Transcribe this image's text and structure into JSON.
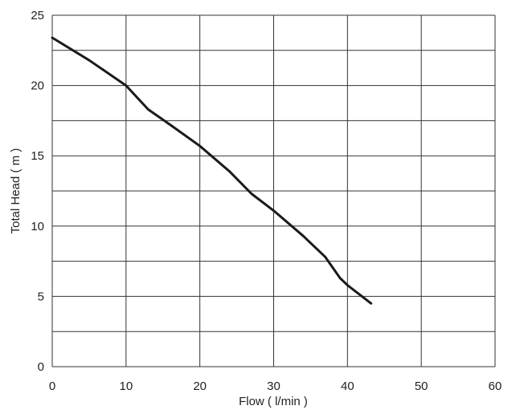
{
  "chart_data": {
    "type": "line",
    "x_label": "Flow ( l/min )",
    "y_label": "Total Head ( m )",
    "xlim": [
      0,
      60
    ],
    "xticks": [
      0,
      10,
      20,
      30,
      40,
      50,
      60
    ],
    "ylim": [
      0,
      25
    ],
    "yticks": [
      0,
      5,
      10,
      15,
      20,
      25
    ],
    "y_minor_ticks": [
      2.5,
      7.5,
      12.5,
      17.5,
      22.5
    ],
    "grid": true,
    "series": [
      {
        "color": "#1a1a1a",
        "x": [
          0,
          5,
          10,
          13,
          16,
          20,
          24,
          27,
          30,
          34,
          37,
          39,
          40,
          43.2
        ],
        "values": [
          23.4,
          21.8,
          20,
          18.3,
          17.2,
          15.7,
          13.9,
          12.3,
          11.1,
          9.3,
          7.8,
          6.3,
          5.8,
          4.5
        ]
      }
    ]
  }
}
